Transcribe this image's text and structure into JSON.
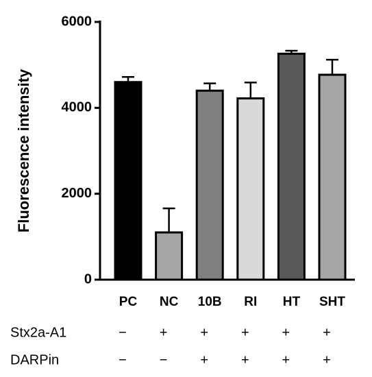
{
  "chart_data": {
    "type": "bar",
    "y_label": "Fluorescence intensity",
    "categories": [
      "PC",
      "NC",
      "10B",
      "RI",
      "HT",
      "SHT"
    ],
    "values": [
      4600,
      1100,
      4400,
      4220,
      5260,
      4770
    ],
    "errors": [
      120,
      560,
      170,
      370,
      70,
      350
    ],
    "colors": [
      "#000000",
      "#a6a6a6",
      "#808080",
      "#d9d9d9",
      "#595959",
      "#a6a6a6"
    ],
    "ylim": [
      0,
      6000
    ],
    "yticks": [
      0,
      2000,
      4000,
      6000
    ],
    "conditions": [
      {
        "label": "Stx2a-A1",
        "signs": [
          "−",
          "+",
          "+",
          "+",
          "+",
          "+"
        ]
      },
      {
        "label": "DARPin",
        "signs": [
          "−",
          "−",
          "+",
          "+",
          "+",
          "+"
        ]
      }
    ]
  }
}
